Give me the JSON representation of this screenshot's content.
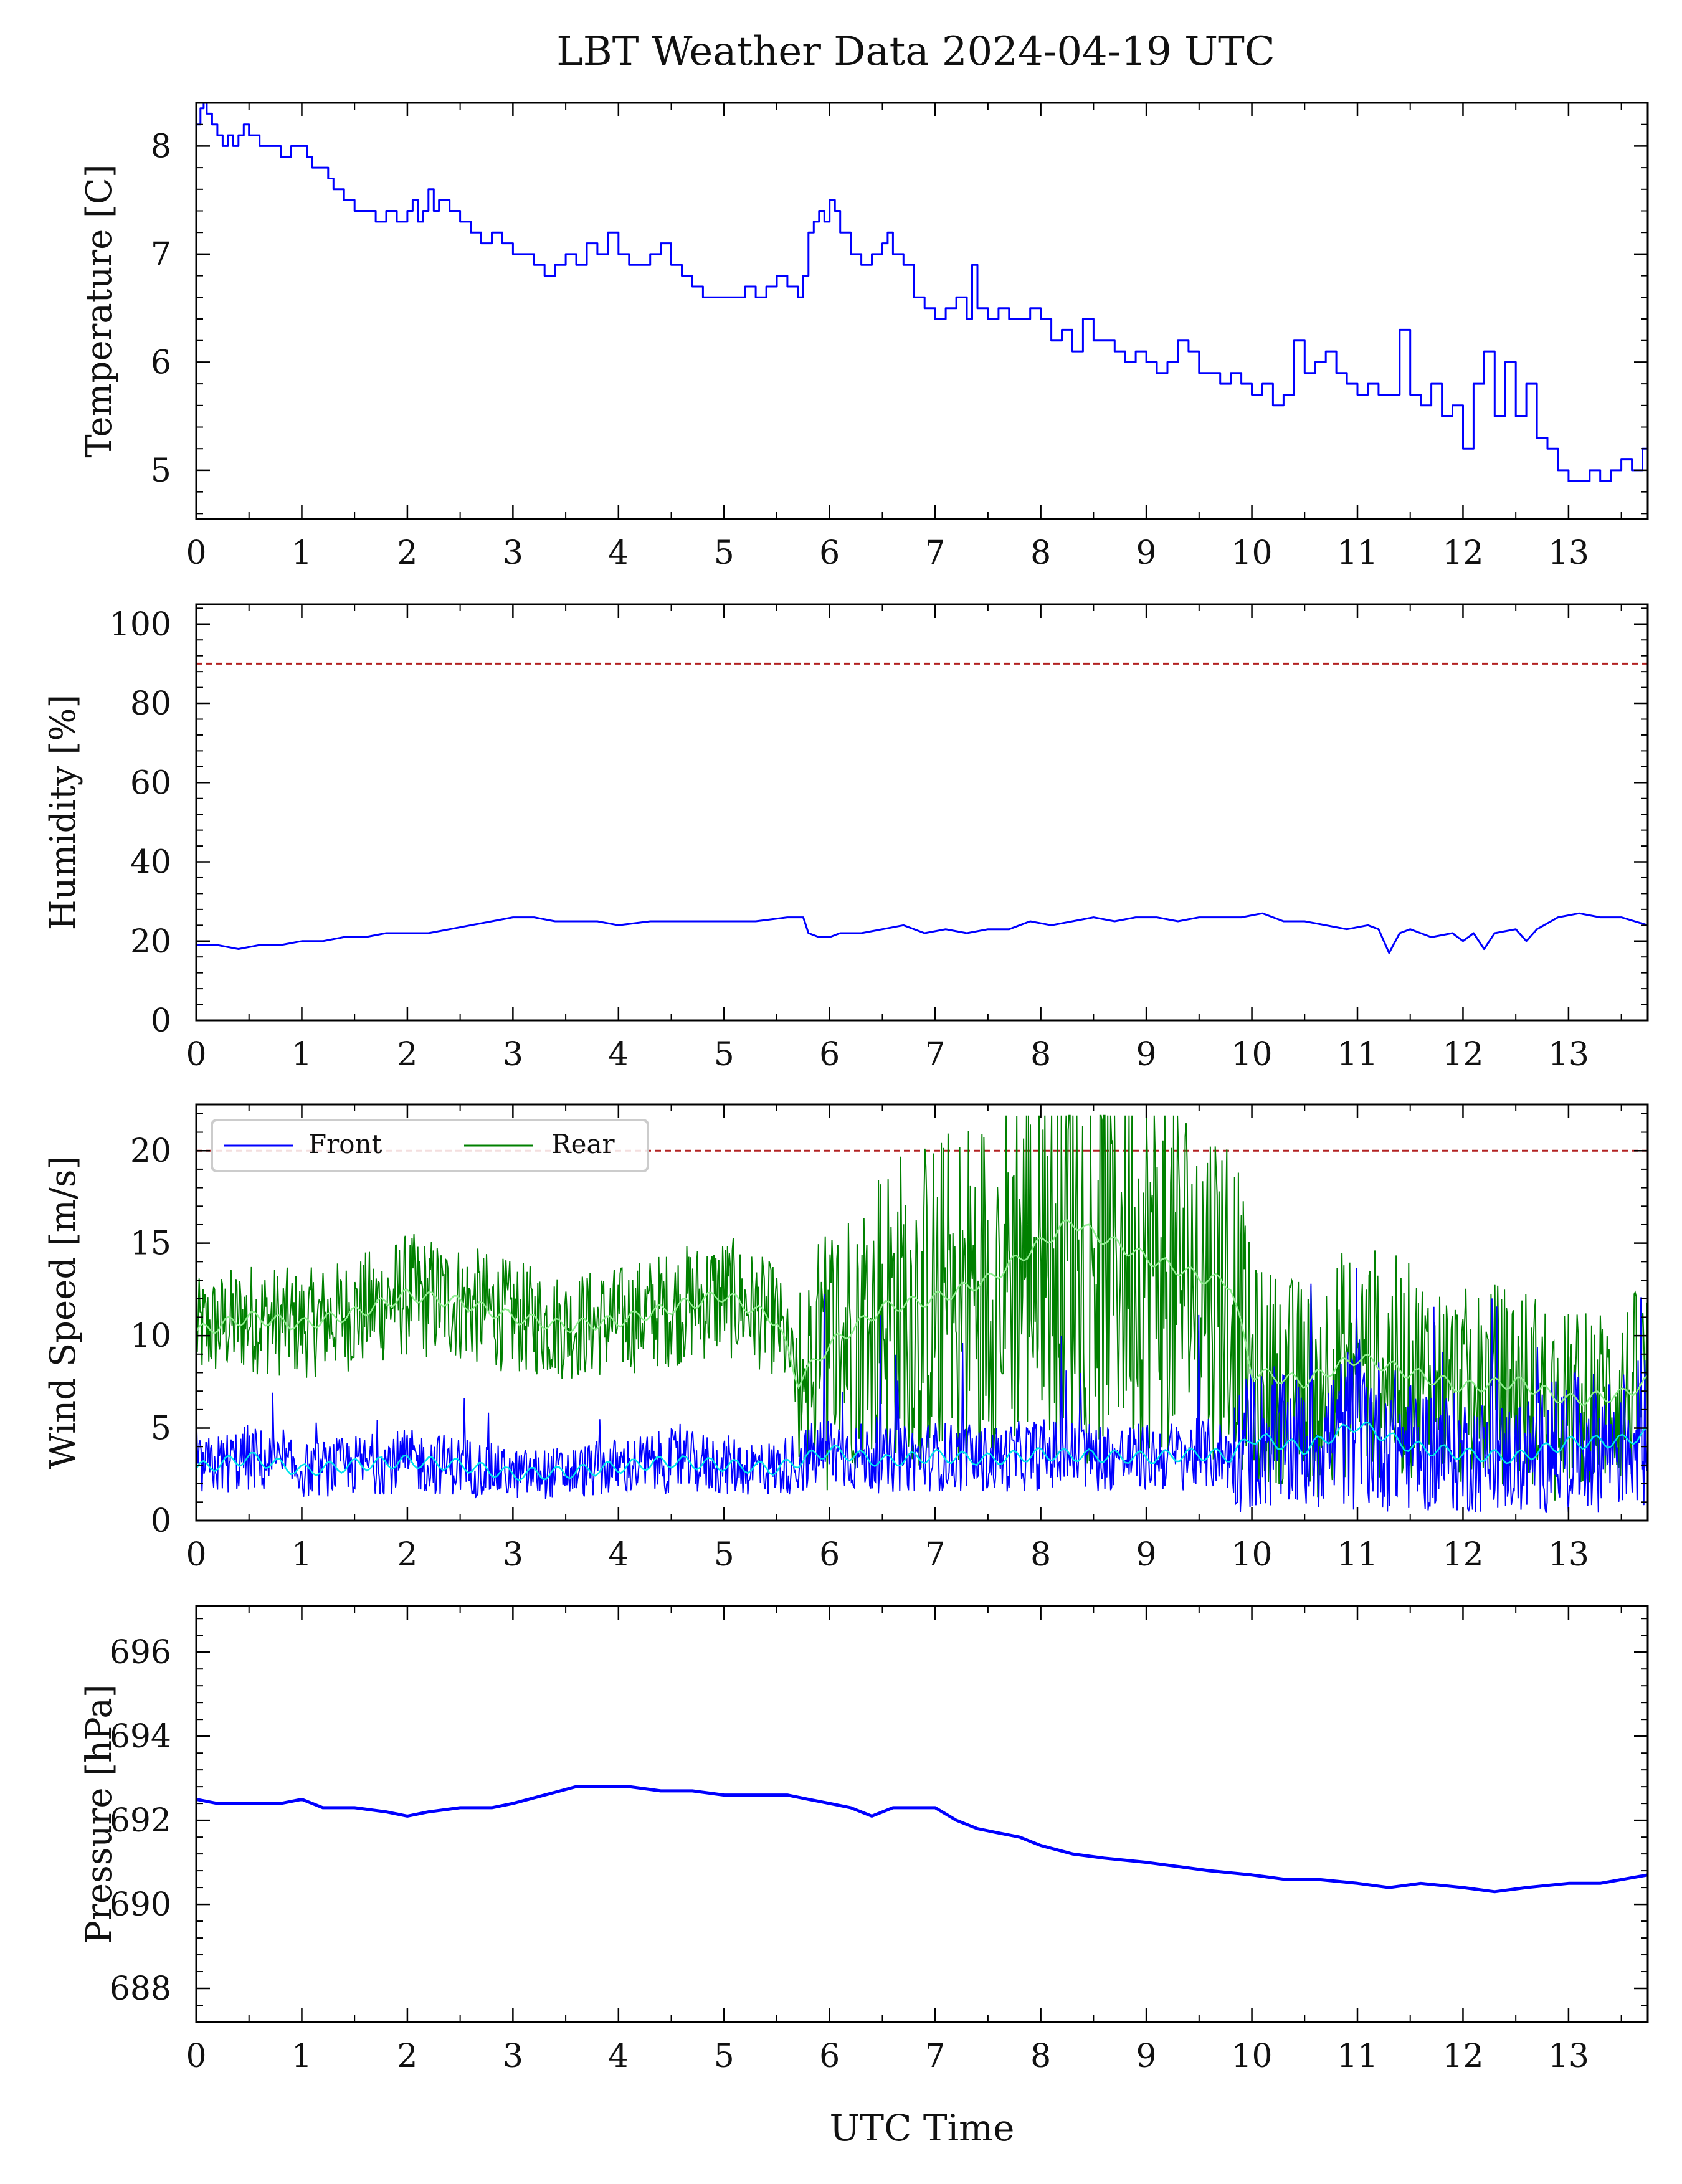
{
  "title": "LBT Weather Data 2024-04-19 UTC",
  "chart_data": [
    {
      "type": "line",
      "id": "temperature",
      "ylabel": "Temperature [C]",
      "xlabel": "",
      "xlim": [
        0,
        13.75
      ],
      "ylim": [
        4.55,
        8.4
      ],
      "xticks": [
        0,
        1,
        2,
        3,
        4,
        5,
        6,
        7,
        8,
        9,
        10,
        11,
        12,
        13
      ],
      "yticks": [
        5,
        6,
        7,
        8
      ],
      "threshold": null,
      "series": [
        {
          "color": "#0000ff",
          "x": [
            0,
            0.04,
            0.07,
            0.1,
            0.15,
            0.2,
            0.25,
            0.3,
            0.35,
            0.4,
            0.45,
            0.5,
            0.55,
            0.6,
            0.7,
            0.8,
            0.9,
            1.0,
            1.05,
            1.1,
            1.2,
            1.25,
            1.3,
            1.4,
            1.5,
            1.6,
            1.7,
            1.8,
            1.9,
            2.0,
            2.05,
            2.1,
            2.15,
            2.2,
            2.25,
            2.3,
            2.4,
            2.5,
            2.6,
            2.7,
            2.8,
            2.9,
            3.0,
            3.1,
            3.2,
            3.3,
            3.4,
            3.5,
            3.6,
            3.7,
            3.8,
            3.9,
            4.0,
            4.1,
            4.2,
            4.3,
            4.4,
            4.5,
            4.6,
            4.7,
            4.8,
            4.9,
            5.0,
            5.1,
            5.2,
            5.3,
            5.4,
            5.5,
            5.6,
            5.7,
            5.75,
            5.8,
            5.85,
            5.9,
            5.95,
            6.0,
            6.05,
            6.1,
            6.2,
            6.3,
            6.4,
            6.5,
            6.55,
            6.6,
            6.7,
            6.8,
            6.9,
            7.0,
            7.1,
            7.2,
            7.3,
            7.35,
            7.4,
            7.5,
            7.6,
            7.7,
            7.8,
            7.9,
            8.0,
            8.1,
            8.2,
            8.3,
            8.4,
            8.5,
            8.6,
            8.7,
            8.8,
            8.9,
            9.0,
            9.1,
            9.2,
            9.3,
            9.4,
            9.5,
            9.6,
            9.7,
            9.8,
            9.9,
            10.0,
            10.1,
            10.2,
            10.3,
            10.4,
            10.5,
            10.6,
            10.7,
            10.8,
            10.9,
            11.0,
            11.1,
            11.2,
            11.3,
            11.4,
            11.5,
            11.6,
            11.7,
            11.8,
            11.9,
            12.0,
            12.1,
            12.2,
            12.3,
            12.4,
            12.5,
            12.6,
            12.7,
            12.8,
            12.9,
            13.0,
            13.1,
            13.2,
            13.3,
            13.4,
            13.5,
            13.6,
            13.7,
            13.75
          ],
          "y": [
            8.2,
            8.35,
            8.4,
            8.3,
            8.2,
            8.1,
            8.0,
            8.1,
            8.0,
            8.1,
            8.2,
            8.1,
            8.1,
            8.0,
            8.0,
            7.9,
            8.0,
            8.0,
            7.9,
            7.8,
            7.8,
            7.7,
            7.6,
            7.5,
            7.4,
            7.4,
            7.3,
            7.4,
            7.3,
            7.4,
            7.5,
            7.3,
            7.4,
            7.6,
            7.4,
            7.5,
            7.4,
            7.3,
            7.2,
            7.1,
            7.2,
            7.1,
            7.0,
            7.0,
            6.9,
            6.8,
            6.9,
            7.0,
            6.9,
            7.1,
            7.0,
            7.2,
            7.0,
            6.9,
            6.9,
            7.0,
            7.1,
            6.9,
            6.8,
            6.7,
            6.6,
            6.6,
            6.6,
            6.6,
            6.7,
            6.6,
            6.7,
            6.8,
            6.7,
            6.6,
            6.8,
            7.2,
            7.3,
            7.4,
            7.3,
            7.5,
            7.4,
            7.2,
            7.0,
            6.9,
            7.0,
            7.1,
            7.2,
            7.0,
            6.9,
            6.6,
            6.5,
            6.4,
            6.5,
            6.6,
            6.4,
            6.9,
            6.5,
            6.4,
            6.5,
            6.4,
            6.4,
            6.5,
            6.4,
            6.2,
            6.3,
            6.1,
            6.4,
            6.2,
            6.2,
            6.1,
            6.0,
            6.1,
            6.0,
            5.9,
            6.0,
            6.2,
            6.1,
            5.9,
            5.9,
            5.8,
            5.9,
            5.8,
            5.7,
            5.8,
            5.6,
            5.7,
            6.2,
            5.9,
            6.0,
            6.1,
            5.9,
            5.8,
            5.7,
            5.8,
            5.7,
            5.7,
            6.3,
            5.7,
            5.6,
            5.8,
            5.5,
            5.6,
            5.2,
            5.8,
            6.1,
            5.5,
            6.0,
            5.5,
            5.8,
            5.3,
            5.2,
            5.0,
            4.9,
            4.9,
            5.0,
            4.9,
            5.0,
            5.1,
            5.0,
            5.2,
            5.2
          ]
        }
      ]
    },
    {
      "type": "line",
      "id": "humidity",
      "ylabel": "Humidity [%]",
      "xlabel": "",
      "xlim": [
        0,
        13.75
      ],
      "ylim": [
        0,
        105
      ],
      "xticks": [
        0,
        1,
        2,
        3,
        4,
        5,
        6,
        7,
        8,
        9,
        10,
        11,
        12,
        13
      ],
      "yticks": [
        0,
        20,
        40,
        60,
        80,
        100
      ],
      "threshold": {
        "value": 90,
        "color": "#b22222"
      },
      "series": [
        {
          "color": "#0000ff",
          "x": [
            0,
            0.2,
            0.4,
            0.6,
            0.8,
            1.0,
            1.2,
            1.4,
            1.6,
            1.8,
            2.0,
            2.2,
            2.4,
            2.6,
            2.8,
            3.0,
            3.2,
            3.4,
            3.6,
            3.8,
            4.0,
            4.3,
            4.6,
            5.0,
            5.3,
            5.6,
            5.75,
            5.8,
            5.9,
            6.0,
            6.1,
            6.3,
            6.5,
            6.7,
            6.9,
            7.1,
            7.3,
            7.5,
            7.7,
            7.9,
            8.1,
            8.3,
            8.5,
            8.7,
            8.9,
            9.1,
            9.3,
            9.5,
            9.7,
            9.9,
            10.1,
            10.3,
            10.5,
            10.7,
            10.9,
            11.1,
            11.2,
            11.3,
            11.4,
            11.5,
            11.7,
            11.9,
            12.0,
            12.1,
            12.2,
            12.3,
            12.5,
            12.6,
            12.7,
            12.9,
            13.1,
            13.3,
            13.5,
            13.75
          ],
          "y": [
            19,
            19,
            18,
            19,
            19,
            20,
            20,
            21,
            21,
            22,
            22,
            22,
            23,
            24,
            25,
            26,
            26,
            25,
            25,
            25,
            24,
            25,
            25,
            25,
            25,
            26,
            26,
            22,
            21,
            21,
            22,
            22,
            23,
            24,
            22,
            23,
            22,
            23,
            23,
            25,
            24,
            25,
            26,
            25,
            26,
            26,
            25,
            26,
            26,
            26,
            27,
            25,
            25,
            24,
            23,
            24,
            23,
            17,
            22,
            23,
            21,
            22,
            20,
            22,
            18,
            22,
            23,
            20,
            23,
            26,
            27,
            26,
            26,
            24
          ]
        }
      ]
    },
    {
      "type": "line",
      "id": "wind",
      "ylabel": "Wind Speed [m/s]",
      "xlabel": "",
      "xlim": [
        0,
        13.75
      ],
      "ylim": [
        0,
        22.5
      ],
      "xticks": [
        0,
        1,
        2,
        3,
        4,
        5,
        6,
        7,
        8,
        9,
        10,
        11,
        12,
        13
      ],
      "yticks": [
        0,
        5,
        10,
        15,
        20
      ],
      "threshold": {
        "value": 20,
        "color": "#b22222"
      },
      "legend": {
        "position": "upper-left",
        "entries": [
          "Front",
          "Rear"
        ]
      },
      "series": [
        {
          "name": "Front",
          "color": "#0000ff",
          "smooth_color": "#00e5ee",
          "x": [
            0,
            0.5,
            1,
            1.5,
            2,
            2.5,
            3,
            3.5,
            4,
            4.5,
            5,
            5.5,
            5.7,
            6,
            6.5,
            7,
            7.5,
            8,
            8.5,
            9,
            9.5,
            9.8,
            10,
            10.5,
            11,
            11.5,
            12,
            12.5,
            13,
            13.5,
            13.75
          ],
          "y": [
            2.8,
            3.4,
            2.7,
            3.0,
            3.2,
            3.0,
            2.5,
            2.6,
            2.9,
            3.2,
            3.0,
            2.8,
            3.2,
            3.8,
            3.2,
            3.5,
            3.3,
            3.6,
            3.5,
            3.4,
            3.6,
            3.5,
            4.5,
            3.9,
            5.2,
            4.0,
            3.6,
            3.4,
            4.2,
            4.3,
            4.7
          ]
        },
        {
          "name": "Rear",
          "color": "#008000",
          "smooth_color": "#90ee90",
          "x": [
            0,
            0.5,
            1,
            1.5,
            2,
            2.5,
            3,
            3.5,
            4,
            4.5,
            5,
            5.5,
            5.7,
            6,
            6.5,
            7,
            7.5,
            8,
            8.3,
            8.5,
            9,
            9.5,
            9.8,
            10,
            10.5,
            11,
            11.5,
            12,
            12.5,
            13,
            13.5,
            13.75
          ],
          "y": [
            10.2,
            11.0,
            10.6,
            11.2,
            12.2,
            11.8,
            11.0,
            10.5,
            10.8,
            11.5,
            12.2,
            10.8,
            7.5,
            9.5,
            11.5,
            12.0,
            13.0,
            15.0,
            16.2,
            15.5,
            14.2,
            13.2,
            12.8,
            8.0,
            7.5,
            8.8,
            8.0,
            7.2,
            7.5,
            6.5,
            6.8,
            7.5
          ]
        }
      ]
    },
    {
      "type": "line",
      "id": "pressure",
      "ylabel": "Pressure [hPa]",
      "xlabel": "UTC Time",
      "xlim": [
        0,
        13.75
      ],
      "ylim": [
        687.2,
        697.1
      ],
      "xticks": [
        0,
        1,
        2,
        3,
        4,
        5,
        6,
        7,
        8,
        9,
        10,
        11,
        12,
        13
      ],
      "yticks": [
        688,
        690,
        692,
        694,
        696
      ],
      "threshold": null,
      "series": [
        {
          "color": "#0000ff",
          "x": [
            0,
            0.2,
            0.5,
            0.8,
            1.0,
            1.2,
            1.5,
            1.8,
            2.0,
            2.2,
            2.5,
            2.8,
            3.0,
            3.3,
            3.6,
            3.9,
            4.1,
            4.4,
            4.7,
            5.0,
            5.3,
            5.6,
            5.8,
            6.0,
            6.2,
            6.4,
            6.6,
            6.8,
            7.0,
            7.2,
            7.4,
            7.6,
            7.8,
            8.0,
            8.3,
            8.6,
            9.0,
            9.3,
            9.6,
            10.0,
            10.3,
            10.6,
            11.0,
            11.3,
            11.6,
            12.0,
            12.3,
            12.6,
            13.0,
            13.3,
            13.75
          ],
          "y": [
            692.5,
            692.4,
            692.4,
            692.4,
            692.5,
            692.3,
            692.3,
            692.2,
            692.1,
            692.2,
            692.3,
            692.3,
            692.4,
            692.6,
            692.8,
            692.8,
            692.8,
            692.7,
            692.7,
            692.6,
            692.6,
            692.6,
            692.5,
            692.4,
            692.3,
            692.1,
            692.3,
            692.3,
            692.3,
            692.0,
            691.8,
            691.7,
            691.6,
            691.4,
            691.2,
            691.1,
            691.0,
            690.9,
            690.8,
            690.7,
            690.6,
            690.6,
            690.5,
            690.4,
            690.5,
            690.4,
            690.3,
            690.4,
            690.5,
            690.5,
            690.7
          ]
        }
      ]
    }
  ]
}
